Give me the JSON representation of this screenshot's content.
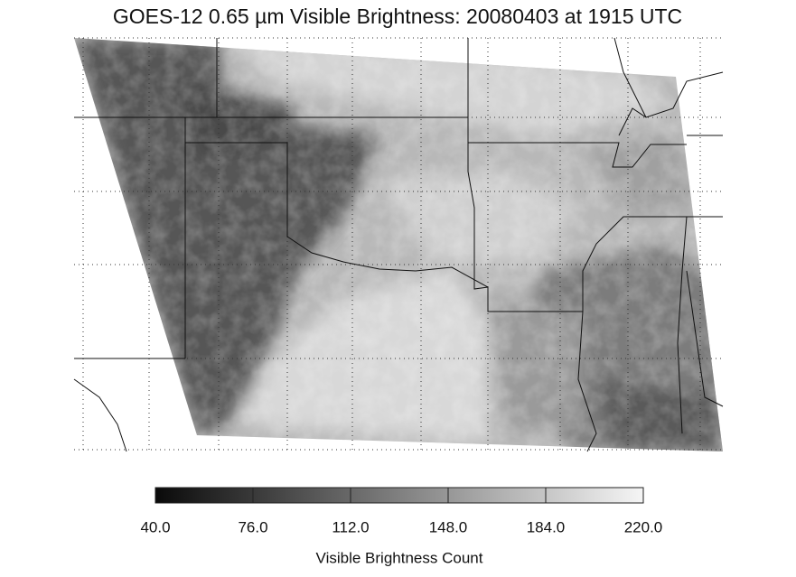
{
  "title": "GOES-12 0.65 µm Visible Brightness: 20080403 at 1915 UTC",
  "colorbar": {
    "lim": [
      40,
      220
    ],
    "ticks": [
      {
        "value": 40,
        "label": "40.0"
      },
      {
        "value": 76,
        "label": "76.0"
      },
      {
        "value": 112,
        "label": "112.0"
      },
      {
        "value": 148,
        "label": "148.0"
      },
      {
        "value": 184,
        "label": "184.0"
      },
      {
        "value": 220,
        "label": "220.0"
      }
    ],
    "label": "Visible Brightness Count"
  }
}
